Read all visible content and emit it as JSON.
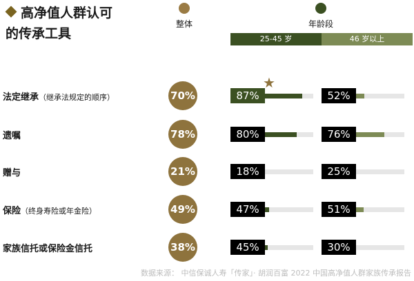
{
  "title_line1": "高净值人群认可",
  "title_line2": "的传承工具",
  "legend": {
    "overall_label": "整体",
    "overall_color": "#9a7b44",
    "age_label": "年龄段",
    "age_color": "#3b5022"
  },
  "age_groups": [
    {
      "label": "25-45 岁",
      "color": "#3b5022"
    },
    {
      "label": "46 岁以上",
      "color": "#7d8b55"
    }
  ],
  "chart_data": {
    "type": "bar",
    "unit": "%",
    "categories": [
      "法定继承",
      "遗嘱",
      "赠与",
      "保险",
      "家族信托或保险金信托"
    ],
    "category_notes": [
      "（继承法规定的顺序）",
      "",
      "",
      "（终身寿险或年金险）",
      ""
    ],
    "overall": [
      70,
      78,
      21,
      49,
      38
    ],
    "series": [
      {
        "name": "25-45 岁",
        "values": [
          87,
          80,
          18,
          47,
          45
        ]
      },
      {
        "name": "46 岁以上",
        "values": [
          52,
          76,
          25,
          51,
          30
        ]
      }
    ],
    "highlight": {
      "series": 0,
      "index": 0,
      "marker": "★"
    },
    "ylim": [
      0,
      100
    ]
  },
  "source": "数据来源： 中信保诚人寿「传家」· 胡润百富 2022 中国高净值人群家族传承报告"
}
